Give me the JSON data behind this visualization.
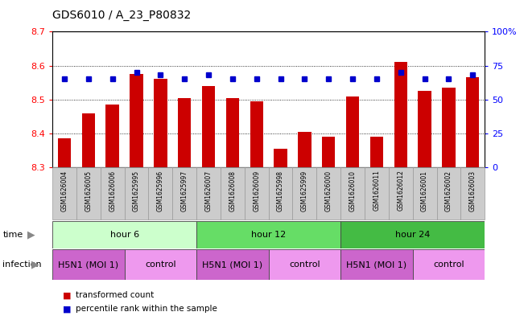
{
  "title": "GDS6010 / A_23_P80832",
  "samples": [
    "GSM1626004",
    "GSM1626005",
    "GSM1626006",
    "GSM1625995",
    "GSM1625996",
    "GSM1625997",
    "GSM1626007",
    "GSM1626008",
    "GSM1626009",
    "GSM1625998",
    "GSM1625999",
    "GSM1626000",
    "GSM1626010",
    "GSM1626011",
    "GSM1626012",
    "GSM1626001",
    "GSM1626002",
    "GSM1626003"
  ],
  "red_values": [
    8.385,
    8.46,
    8.485,
    8.575,
    8.56,
    8.505,
    8.54,
    8.505,
    8.495,
    8.355,
    8.405,
    8.39,
    8.51,
    8.39,
    8.61,
    8.525,
    8.535,
    8.565
  ],
  "blue_values": [
    65,
    65,
    65,
    70,
    68,
    65,
    68,
    65,
    65,
    65,
    65,
    65,
    65,
    65,
    70,
    65,
    65,
    68
  ],
  "ylim_left": [
    8.3,
    8.7
  ],
  "ylim_right": [
    0,
    100
  ],
  "yticks_left": [
    8.3,
    8.4,
    8.5,
    8.6,
    8.7
  ],
  "yticks_right": [
    0,
    25,
    50,
    75,
    100
  ],
  "ytick_right_labels": [
    "0",
    "25",
    "50",
    "75",
    "100%"
  ],
  "time_groups": [
    {
      "label": "hour 6",
      "start": 0,
      "end": 6,
      "color": "#ccffcc"
    },
    {
      "label": "hour 12",
      "start": 6,
      "end": 12,
      "color": "#66dd66"
    },
    {
      "label": "hour 24",
      "start": 12,
      "end": 18,
      "color": "#44bb44"
    }
  ],
  "infection_groups": [
    {
      "label": "H5N1 (MOI 1)",
      "start": 0,
      "end": 3,
      "color": "#cc66cc"
    },
    {
      "label": "control",
      "start": 3,
      "end": 6,
      "color": "#ee99ee"
    },
    {
      "label": "H5N1 (MOI 1)",
      "start": 6,
      "end": 9,
      "color": "#cc66cc"
    },
    {
      "label": "control",
      "start": 9,
      "end": 12,
      "color": "#ee99ee"
    },
    {
      "label": "H5N1 (MOI 1)",
      "start": 12,
      "end": 15,
      "color": "#cc66cc"
    },
    {
      "label": "control",
      "start": 15,
      "end": 18,
      "color": "#ee99ee"
    }
  ],
  "bar_color": "#cc0000",
  "dot_color": "#0000cc",
  "bar_width": 0.55,
  "baseline": 8.3,
  "grid_lines": [
    8.4,
    8.5,
    8.6
  ],
  "sample_box_color": "#cccccc",
  "sample_box_edge": "#999999"
}
